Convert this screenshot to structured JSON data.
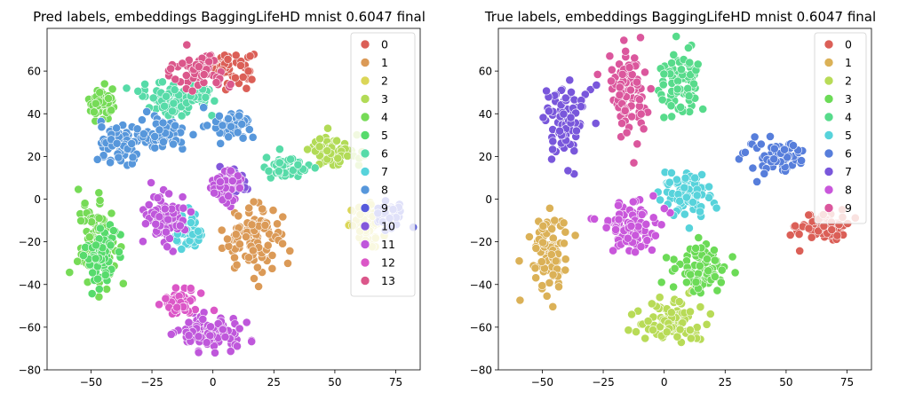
{
  "chart_data": [
    {
      "type": "scatter",
      "title": "Pred labels, embeddings BaggingLifeHD mnist 0.6047 final",
      "xlabel": "",
      "ylabel": "",
      "xlim": [
        -68,
        85
      ],
      "ylim": [
        -80,
        80
      ],
      "xticks": [
        -50,
        -25,
        0,
        25,
        50,
        75
      ],
      "yticks": [
        -80,
        -60,
        -40,
        -20,
        0,
        20,
        40,
        60
      ],
      "grid": false,
      "legend": "top-right",
      "point_edge_color": "#ffffff",
      "series": [
        {
          "name": "0",
          "color": "#db5f57",
          "clusters": [
            {
              "x": 5,
              "y": 62,
              "sx": 8,
              "sy": 5
            }
          ]
        },
        {
          "name": "1",
          "color": "#db9a57",
          "clusters": [
            {
              "x": 16,
              "y": -18,
              "sx": 8,
              "sy": 10
            }
          ]
        },
        {
          "name": "2",
          "color": "#dbd657",
          "clusters": [
            {
              "x": 65,
              "y": -12,
              "sx": 6,
              "sy": 6
            }
          ]
        },
        {
          "name": "3",
          "color": "#b2db57",
          "clusters": [
            {
              "x": 50,
              "y": 22,
              "sx": 7,
              "sy": 5
            }
          ]
        },
        {
          "name": "4",
          "color": "#76db57",
          "clusters": [
            {
              "x": -48,
              "y": -22,
              "sx": 5,
              "sy": 13
            },
            {
              "x": -45,
              "y": 45,
              "sx": 4,
              "sy": 5
            }
          ]
        },
        {
          "name": "5",
          "color": "#57db6c",
          "clusters": [
            {
              "x": -46,
              "y": -26,
              "sx": 4,
              "sy": 11
            }
          ]
        },
        {
          "name": "6",
          "color": "#57dba8",
          "clusters": [
            {
              "x": -18,
              "y": 47,
              "sx": 8,
              "sy": 5
            },
            {
              "x": 30,
              "y": 15,
              "sx": 6,
              "sy": 4
            },
            {
              "x": -5,
              "y": 50,
              "sx": 4,
              "sy": 4
            }
          ]
        },
        {
          "name": "7",
          "color": "#57d3db",
          "clusters": [
            {
              "x": -10,
              "y": -16,
              "sx": 4,
              "sy": 5
            }
          ]
        },
        {
          "name": "8",
          "color": "#5797db",
          "clusters": [
            {
              "x": -38,
              "y": 25,
              "sx": 6,
              "sy": 7
            },
            {
              "x": 8,
              "y": 35,
              "sx": 5,
              "sy": 4
            },
            {
              "x": -20,
              "y": 30,
              "sx": 6,
              "sy": 5
            }
          ]
        },
        {
          "name": "9",
          "color": "#575bdb",
          "clusters": [
            {
              "x": 72,
              "y": -8,
              "sx": 4,
              "sy": 4
            }
          ]
        },
        {
          "name": "10",
          "color": "#8357db",
          "clusters": [
            {
              "x": 8,
              "y": 8,
              "sx": 4,
              "sy": 4
            }
          ]
        },
        {
          "name": "11",
          "color": "#bf57db",
          "clusters": [
            {
              "x": -20,
              "y": -8,
              "sx": 6,
              "sy": 8
            },
            {
              "x": 0,
              "y": -62,
              "sx": 10,
              "sy": 6
            },
            {
              "x": 5,
              "y": 5,
              "sx": 5,
              "sy": 5
            }
          ]
        },
        {
          "name": "12",
          "color": "#db57c7",
          "clusters": [
            {
              "x": -13,
              "y": -48,
              "sx": 5,
              "sy": 4
            }
          ]
        },
        {
          "name": "13",
          "color": "#db578b",
          "clusters": [
            {
              "x": -5,
              "y": 60,
              "sx": 7,
              "sy": 5
            }
          ]
        }
      ]
    },
    {
      "type": "scatter",
      "title": "True labels, embeddings BaggingLifeHD mnist 0.6047 final",
      "xlabel": "",
      "ylabel": "",
      "xlim": [
        -68,
        85
      ],
      "ylim": [
        -80,
        80
      ],
      "xticks": [
        -50,
        -25,
        0,
        25,
        50,
        75
      ],
      "yticks": [
        -80,
        -60,
        -40,
        -20,
        0,
        20,
        40,
        60
      ],
      "grid": false,
      "legend": "top-right",
      "point_edge_color": "#ffffff",
      "series": [
        {
          "name": "0",
          "color": "#db5f57",
          "clusters": [
            {
              "x": 65,
              "y": -13,
              "sx": 7,
              "sy": 5
            }
          ]
        },
        {
          "name": "1",
          "color": "#dbb157",
          "clusters": [
            {
              "x": -47,
              "y": -25,
              "sx": 5,
              "sy": 13
            }
          ]
        },
        {
          "name": "2",
          "color": "#b8db57",
          "clusters": [
            {
              "x": 2,
              "y": -57,
              "sx": 10,
              "sy": 7
            }
          ]
        },
        {
          "name": "3",
          "color": "#6cdb57",
          "clusters": [
            {
              "x": 15,
              "y": -33,
              "sx": 7,
              "sy": 8
            }
          ]
        },
        {
          "name": "4",
          "color": "#57db8b",
          "clusters": [
            {
              "x": 7,
              "y": 55,
              "sx": 6,
              "sy": 9
            }
          ]
        },
        {
          "name": "5",
          "color": "#57d3db",
          "clusters": [
            {
              "x": 8,
              "y": 3,
              "sx": 7,
              "sy": 7
            }
          ]
        },
        {
          "name": "6",
          "color": "#577edb",
          "clusters": [
            {
              "x": 45,
              "y": 20,
              "sx": 8,
              "sy": 5
            }
          ]
        },
        {
          "name": "7",
          "color": "#7957db",
          "clusters": [
            {
              "x": -40,
              "y": 36,
              "sx": 6,
              "sy": 11
            }
          ]
        },
        {
          "name": "8",
          "color": "#c957db",
          "clusters": [
            {
              "x": -15,
              "y": -12,
              "sx": 8,
              "sy": 8
            }
          ]
        },
        {
          "name": "9",
          "color": "#db579d",
          "clusters": [
            {
              "x": -15,
              "y": 50,
              "sx": 5,
              "sy": 12
            }
          ]
        }
      ]
    }
  ]
}
